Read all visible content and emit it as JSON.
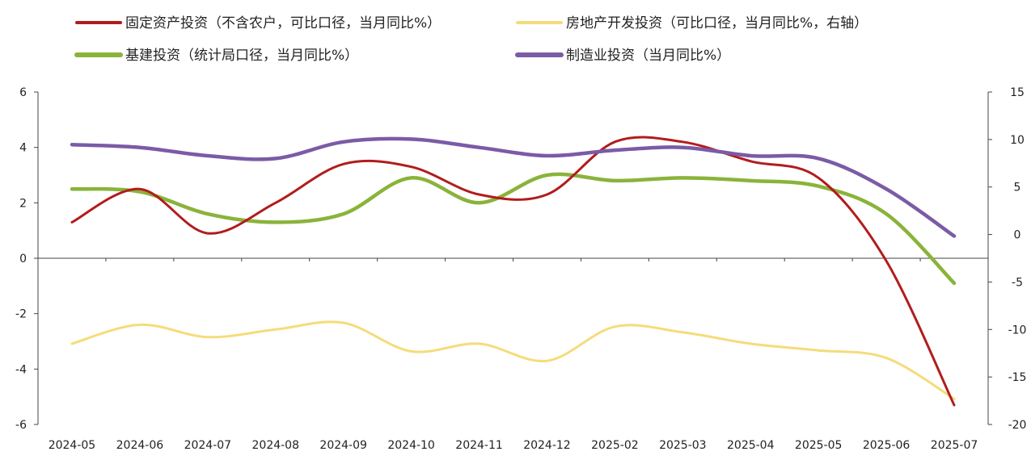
{
  "chart_data": {
    "type": "line",
    "categories": [
      "2024-05",
      "2024-06",
      "2024-07",
      "2024-08",
      "2024-09",
      "2024-10",
      "2024-11",
      "2024-12",
      "2025-02",
      "2025-03",
      "2025-04",
      "2025-05",
      "2025-06",
      "2025-07"
    ],
    "left_axis": {
      "ylim": [
        -6,
        6
      ],
      "ticks": [
        "6",
        "4",
        "2",
        "0",
        "-2",
        "-4",
        "-6"
      ],
      "tick_values": [
        6,
        4,
        2,
        0,
        -2,
        -4,
        -6
      ]
    },
    "right_axis": {
      "ylim": [
        -20,
        15
      ],
      "ticks": [
        "15",
        "10",
        "5",
        "0",
        "-5",
        "-10",
        "-15",
        "-20"
      ],
      "tick_values": [
        15,
        10,
        5,
        0,
        -5,
        -10,
        -15,
        -20
      ]
    },
    "legend_position": "top",
    "series": [
      {
        "name": "固定资产投资（不含农户，可比口径，当月同比%）",
        "color": "#b21c1c",
        "axis": "left",
        "values": [
          1.3,
          2.5,
          0.9,
          2.0,
          3.4,
          3.3,
          2.3,
          2.3,
          4.2,
          4.2,
          3.5,
          2.9,
          -0.1,
          -5.3
        ]
      },
      {
        "name": "房地产开发投资（可比口径，当月同比%，右轴）",
        "color": "#f5dc7a",
        "axis": "right",
        "values": [
          -11.5,
          -9.5,
          -10.8,
          -10.0,
          -9.3,
          -12.3,
          -11.5,
          -13.3,
          -9.7,
          -10.3,
          -11.5,
          -12.2,
          -13.0,
          -17.3
        ]
      },
      {
        "name": "基建投资（统计局口径，当月同比%）",
        "color": "#8ab33a",
        "axis": "left",
        "values": [
          2.5,
          2.4,
          1.6,
          1.3,
          1.6,
          2.9,
          2.0,
          3.0,
          2.8,
          2.9,
          2.8,
          2.6,
          1.6,
          -0.9
        ]
      },
      {
        "name": "制造业投资（当月同比%）",
        "color": "#7b5ba6",
        "axis": "left",
        "values": [
          4.1,
          4.0,
          3.7,
          3.6,
          4.2,
          4.3,
          4.0,
          3.7,
          3.9,
          4.0,
          3.7,
          3.6,
          2.5,
          0.8
        ]
      }
    ]
  }
}
